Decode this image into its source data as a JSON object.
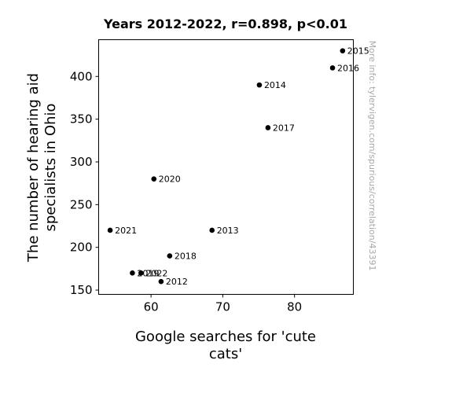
{
  "chart_data": {
    "type": "scatter",
    "title": "Years 2012-2022, r=0.898, p<0.01",
    "xlabel_lines": [
      "Google searches for 'cute",
      "cats'"
    ],
    "ylabel_lines": [
      "The number of hearing aid",
      "specialists in Ohio"
    ],
    "watermark": "More info: tylervigen.com/spurious/correlation/43391",
    "xlim": [
      52.7,
      88.2
    ],
    "ylim": [
      145,
      443
    ],
    "xticks": [
      60,
      70,
      80
    ],
    "yticks": [
      150,
      200,
      250,
      300,
      350,
      400
    ],
    "marker_color": "#000000",
    "points": [
      {
        "label": "2012",
        "x": 61.4,
        "y": 160
      },
      {
        "label": "2013",
        "x": 68.5,
        "y": 220
      },
      {
        "label": "2014",
        "x": 75.1,
        "y": 390
      },
      {
        "label": "2015",
        "x": 86.7,
        "y": 430
      },
      {
        "label": "2016",
        "x": 85.3,
        "y": 410
      },
      {
        "label": "2017",
        "x": 76.3,
        "y": 340
      },
      {
        "label": "2018",
        "x": 62.6,
        "y": 190
      },
      {
        "label": "2019",
        "x": 57.4,
        "y": 170
      },
      {
        "label": "2020",
        "x": 60.4,
        "y": 280
      },
      {
        "label": "2021",
        "x": 54.3,
        "y": 220
      },
      {
        "label": "2022",
        "x": 58.6,
        "y": 170
      }
    ]
  }
}
